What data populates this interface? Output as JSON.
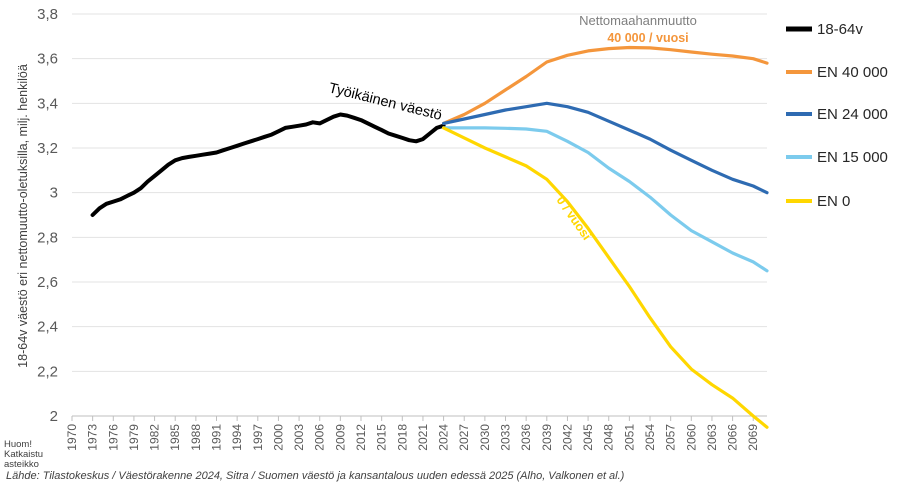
{
  "note": [
    "Huom!",
    "Katkaistu",
    "asteikko"
  ],
  "source": "Lähde: Tilastokeskus / Väestörakenne 2024, Sitra / Suomen väestö ja kansantalous uuden edessä 2025 (Alho, Valkonen et al.)",
  "chart_data": {
    "type": "line",
    "title": "",
    "xlabel": "",
    "ylabel": "18-64v väestö eri nettomuutto-oletuksilla, milj. henkilöä",
    "ylim": [
      2,
      3.8
    ],
    "xlim": [
      1970,
      2071
    ],
    "yticks": [
      "2",
      "2,2",
      "2,4",
      "2,6",
      "2,8",
      "3",
      "3,2",
      "3,4",
      "3,6",
      "3,8"
    ],
    "xticks": [
      "1970",
      "1973",
      "1976",
      "1979",
      "1982",
      "1985",
      "1988",
      "1991",
      "1994",
      "1997",
      "2000",
      "2003",
      "2006",
      "2009",
      "2012",
      "2015",
      "2018",
      "2021",
      "2024",
      "2027",
      "2030",
      "2033",
      "2036",
      "2039",
      "2042",
      "2045",
      "2048",
      "2051",
      "2054",
      "2057",
      "2060",
      "2063",
      "2066",
      "2069"
    ],
    "grid": "horizontal",
    "legend_position": "right",
    "colors": {
      "18-64v": "#000000",
      "EN 40 000": "#f4963c",
      "EN 24 000": "#2e6bb2",
      "EN 15 000": "#7ccbed",
      "EN 0": "#ffd700"
    },
    "series": [
      {
        "name": "18-64v",
        "x": [
          1973,
          1974,
          1975,
          1976,
          1977,
          1978,
          1979,
          1980,
          1981,
          1982,
          1983,
          1984,
          1985,
          1986,
          1987,
          1988,
          1989,
          1990,
          1991,
          1992,
          1993,
          1994,
          1995,
          1996,
          1997,
          1998,
          1999,
          2000,
          2001,
          2002,
          2003,
          2004,
          2005,
          2006,
          2007,
          2008,
          2009,
          2010,
          2011,
          2012,
          2013,
          2014,
          2015,
          2016,
          2017,
          2018,
          2019,
          2020,
          2021,
          2022,
          2023,
          2024
        ],
        "values": [
          2.9,
          2.93,
          2.95,
          2.96,
          2.97,
          2.985,
          3.0,
          3.02,
          3.05,
          3.075,
          3.1,
          3.125,
          3.145,
          3.155,
          3.16,
          3.165,
          3.17,
          3.175,
          3.18,
          3.19,
          3.2,
          3.21,
          3.22,
          3.23,
          3.24,
          3.25,
          3.26,
          3.275,
          3.29,
          3.295,
          3.3,
          3.305,
          3.315,
          3.31,
          3.325,
          3.34,
          3.35,
          3.345,
          3.335,
          3.325,
          3.31,
          3.295,
          3.28,
          3.265,
          3.255,
          3.245,
          3.235,
          3.23,
          3.24,
          3.265,
          3.29,
          3.3
        ]
      },
      {
        "name": "EN 40 000",
        "x": [
          2024,
          2027,
          2030,
          2033,
          2036,
          2039,
          2042,
          2045,
          2048,
          2051,
          2054,
          2057,
          2060,
          2063,
          2066,
          2069,
          2071
        ],
        "values": [
          3.31,
          3.35,
          3.4,
          3.46,
          3.52,
          3.585,
          3.615,
          3.635,
          3.645,
          3.65,
          3.648,
          3.64,
          3.63,
          3.62,
          3.612,
          3.6,
          3.58
        ]
      },
      {
        "name": "EN 24 000",
        "x": [
          2024,
          2027,
          2030,
          2033,
          2036,
          2039,
          2042,
          2045,
          2048,
          2051,
          2054,
          2057,
          2060,
          2063,
          2066,
          2069,
          2071
        ],
        "values": [
          3.31,
          3.33,
          3.35,
          3.37,
          3.385,
          3.4,
          3.385,
          3.36,
          3.32,
          3.28,
          3.24,
          3.19,
          3.145,
          3.1,
          3.06,
          3.03,
          3.0
        ]
      },
      {
        "name": "EN 15 000",
        "x": [
          2024,
          2027,
          2030,
          2033,
          2036,
          2039,
          2042,
          2045,
          2048,
          2051,
          2054,
          2057,
          2060,
          2063,
          2066,
          2069,
          2071
        ],
        "values": [
          3.29,
          3.29,
          3.29,
          3.288,
          3.285,
          3.275,
          3.23,
          3.18,
          3.11,
          3.05,
          2.98,
          2.9,
          2.83,
          2.78,
          2.73,
          2.69,
          2.65
        ]
      },
      {
        "name": "EN 0",
        "x": [
          2024,
          2027,
          2030,
          2033,
          2036,
          2039,
          2042,
          2045,
          2048,
          2051,
          2054,
          2057,
          2060,
          2063,
          2066,
          2069,
          2071
        ],
        "values": [
          3.29,
          3.245,
          3.2,
          3.16,
          3.12,
          3.06,
          2.96,
          2.84,
          2.71,
          2.58,
          2.44,
          2.31,
          2.21,
          2.14,
          2.08,
          2.0,
          1.95
        ]
      }
    ],
    "annotations": [
      {
        "id": "workforce",
        "text": "Työikäinen väestö",
        "color": "#000000"
      },
      {
        "id": "net-title",
        "text": "Nettomaahanmuutto",
        "color": "#7f7f7f"
      },
      {
        "id": "net-40k",
        "text": "40 000 / vuosi",
        "color": "#f4963c"
      },
      {
        "id": "net-0",
        "text": "0 / vuosi",
        "color": "#ffd700"
      }
    ]
  }
}
